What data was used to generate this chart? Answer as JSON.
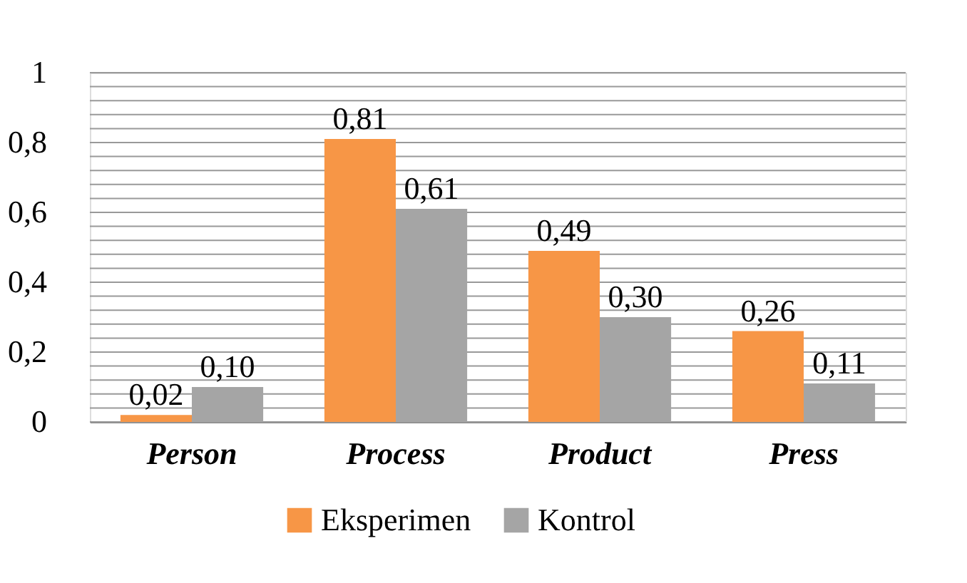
{
  "chart_data": {
    "type": "bar",
    "categories": [
      "Person",
      "Process",
      "Product",
      "Press"
    ],
    "series": [
      {
        "name": "Eksperimen",
        "color": "#f79646",
        "values": [
          0.02,
          0.81,
          0.49,
          0.26
        ],
        "value_labels": [
          "0,02",
          "0,81",
          "0,49",
          "0,26"
        ]
      },
      {
        "name": "Kontrol",
        "color": "#a5a5a5",
        "values": [
          0.1,
          0.61,
          0.3,
          0.11
        ],
        "value_labels": [
          "0,10",
          "0,61",
          "0,30",
          "0,11"
        ]
      }
    ],
    "ylim": [
      0,
      1
    ],
    "yticks": [
      0,
      {
        "value": 0.04,
        "label": null
      },
      {
        "value": 0.08,
        "label": null
      },
      {
        "value": 0.12,
        "label": null
      },
      {
        "value": 0.16,
        "label": null
      },
      {
        "value": 0.2,
        "label": "0,2"
      },
      {
        "value": 0.24,
        "label": null
      },
      {
        "value": 0.28,
        "label": null
      },
      {
        "value": 0.32,
        "label": null
      },
      {
        "value": 0.36,
        "label": null
      },
      {
        "value": 0.4,
        "label": "0,4"
      },
      {
        "value": 0.44,
        "label": null
      },
      {
        "value": 0.48,
        "label": null
      },
      {
        "value": 0.52,
        "label": null
      },
      {
        "value": 0.56,
        "label": null
      },
      {
        "value": 0.6,
        "label": "0,6"
      },
      {
        "value": 0.64,
        "label": null
      },
      {
        "value": 0.68,
        "label": null
      },
      {
        "value": 0.72,
        "label": null
      },
      {
        "value": 0.76,
        "label": null
      },
      {
        "value": 0.8,
        "label": "0,8"
      },
      {
        "value": 0.84,
        "label": null
      },
      {
        "value": 0.88,
        "label": null
      },
      {
        "value": 0.92,
        "label": null
      },
      {
        "value": 0.96,
        "label": null
      },
      1
    ],
    "grid": true,
    "legend": "bottom"
  }
}
